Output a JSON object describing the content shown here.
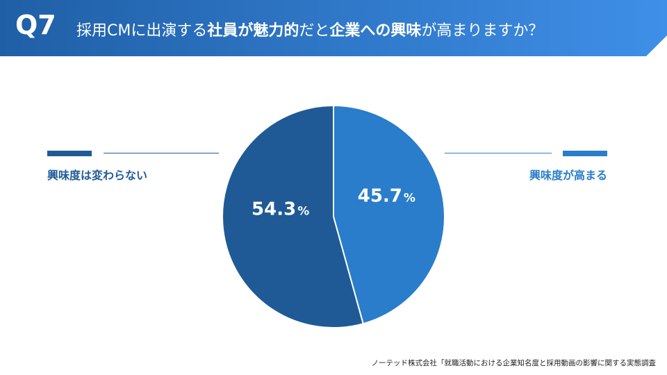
{
  "header": {
    "q_label": "Q7",
    "title_parts": [
      {
        "text": "採用CMに出演する",
        "bold": false
      },
      {
        "text": "社員が魅力的",
        "bold": true
      },
      {
        "text": "だと",
        "bold": false
      },
      {
        "text": "企業への興味",
        "bold": true
      },
      {
        "text": "が高まりますか？",
        "bold": false
      }
    ]
  },
  "colors": {
    "header_start": "#1f5fa6",
    "header_end": "#3f8fe8",
    "dark_blue": "#1f5a97",
    "light_blue": "#2a7dca",
    "line_dark": "#1f5a97",
    "line_light": "#2a7dca"
  },
  "chart_data": {
    "type": "pie",
    "title": "",
    "slices": [
      {
        "label": "興味度が高まる",
        "value": 45.7,
        "value_text": "45.7",
        "unit": "%",
        "color": "#2a7dca"
      },
      {
        "label": "興味度は変わらない",
        "value": 54.3,
        "value_text": "54.3",
        "unit": "%",
        "color": "#1f5a97"
      }
    ],
    "start": "12 o'clock, clockwise",
    "legend_placement": "left and right of the pie"
  },
  "footer": {
    "source": "ノーテッド株式会社「就職活動における企業知名度と採用動画の影響に関する実態調査"
  }
}
